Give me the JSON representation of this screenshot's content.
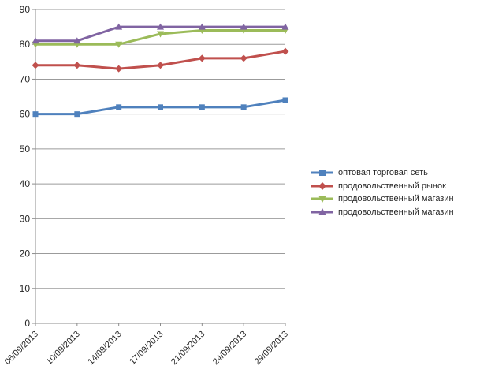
{
  "chart_data": {
    "type": "line",
    "title": "",
    "xlabel": "",
    "ylabel": "",
    "categories": [
      "06/09/2013",
      "10/09/2013",
      "14/09/2013",
      "17/09/2013",
      "21/09/2013",
      "24/09/2013",
      "29/09/2013"
    ],
    "series": [
      {
        "name": "оптовая торговая сеть",
        "marker": "square",
        "color": "#4F81BD",
        "values": [
          60,
          60,
          62,
          62,
          62,
          62,
          64
        ]
      },
      {
        "name": "продовольственный рынок",
        "marker": "diamond",
        "color": "#C0504D",
        "values": [
          74,
          74,
          73,
          74,
          76,
          76,
          78
        ]
      },
      {
        "name": "продовольственный магазин",
        "marker": "triangle-down",
        "color": "#9BBB59",
        "values": [
          80,
          80,
          80,
          83,
          84,
          84,
          84
        ]
      },
      {
        "name": "продовольственный магазин",
        "marker": "triangle-up",
        "color": "#8064A2",
        "values": [
          81,
          81,
          85,
          85,
          85,
          85,
          85
        ]
      }
    ],
    "ylim": [
      0,
      90
    ],
    "ytick_step": 10,
    "yticks": [
      0,
      10,
      20,
      30,
      40,
      50,
      60,
      70,
      80,
      90
    ],
    "grid": true,
    "legend_position": "right",
    "colors": {
      "gridline": "#9B9B9B",
      "axis": "#8C8C8C",
      "tick_text": "#262626",
      "background": "#FFFFFF"
    }
  }
}
